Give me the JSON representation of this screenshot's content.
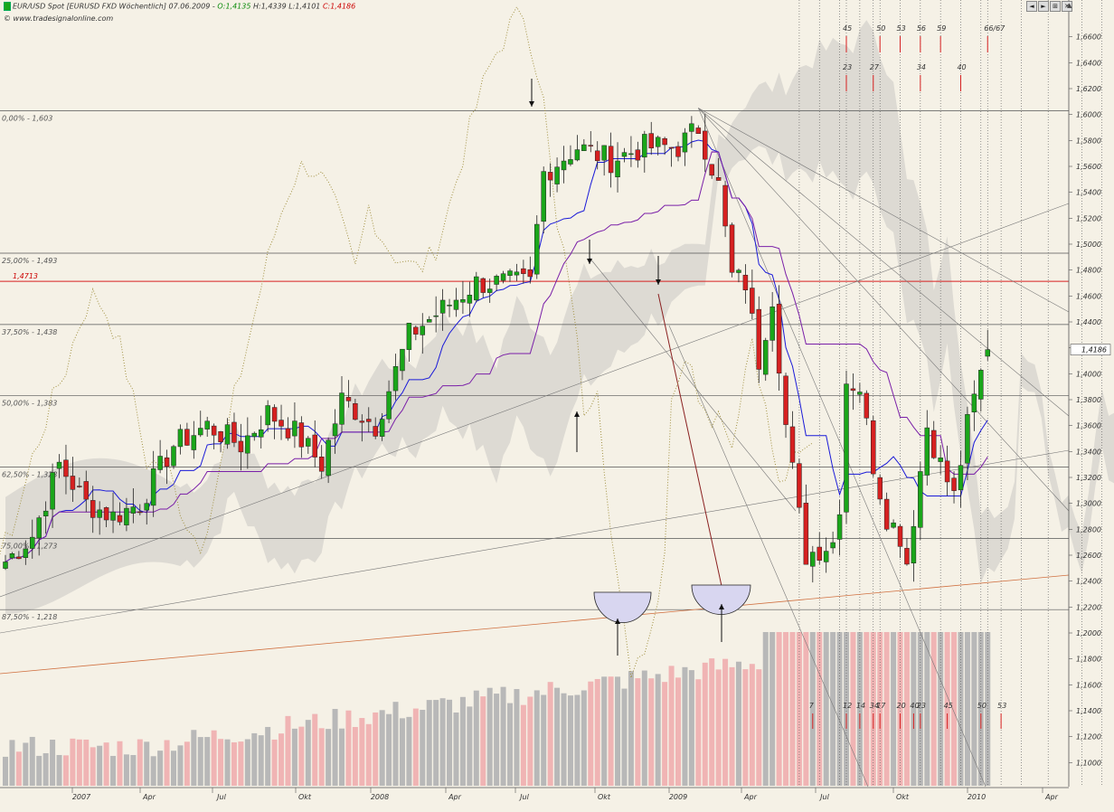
{
  "header": {
    "symbol": "EUR/USD Spot [EURUSD FXD  Wöchentlich] 07.06.2009",
    "o_label": "O:1,4135",
    "hl_label": "H:1,4339 L:1,4101",
    "c_label": "C:1,4186",
    "watermark": "© www.tradesignalonline.com"
  },
  "toolbar": {
    "btn_prev": "◄",
    "btn_next": "►",
    "btn_fit": "⊞",
    "btn_close": "✕",
    "btn_up": "▲"
  },
  "colors": {
    "background": "#f5f1e6",
    "up": "#1aa61a",
    "down": "#d62020",
    "kijun": "#7a1fa8",
    "tenkan": "#1a1ad8",
    "cloud": "#c8c6c2",
    "volume_up": "#b8b8b8",
    "volume_down": "#f0b4b4"
  },
  "chart_data": {
    "type": "candlestick",
    "timeframe": "weekly",
    "ylim": [
      1.08,
      1.68
    ],
    "y_ticks": [
      "1,1000",
      "1,1200",
      "1,1400",
      "1,1600",
      "1,1800",
      "1,2000",
      "1,2200",
      "1,2400",
      "1,2600",
      "1,2800",
      "1,3000",
      "1,3200",
      "1,3400",
      "1,3600",
      "1,3800",
      "1,4000",
      "1,4200",
      "1,4400",
      "1,4600",
      "1,4800",
      "1,5000",
      "1,5200",
      "1,5400",
      "1,5600",
      "1,5800",
      "1,6000",
      "1,6200",
      "1,6400",
      "1,6600"
    ],
    "x_ticks": [
      "2007",
      "Apr",
      "Jul",
      "Okt",
      "2008",
      "Apr",
      "Jul",
      "Okt",
      "2009",
      "Apr",
      "Jul",
      "Okt",
      "2010",
      "Apr"
    ],
    "last_price_label": "1,4186",
    "fib_levels": [
      {
        "label": "0,00% - 1,603",
        "value": 1.603
      },
      {
        "label": "25,00% - 1,493",
        "value": 1.493
      },
      {
        "label": "37,50% - 1,438",
        "value": 1.438
      },
      {
        "label": "50,00% - 1,383",
        "value": 1.383
      },
      {
        "label": "62,50% - 1,328",
        "value": 1.328
      },
      {
        "label": "75,00% - 1,273",
        "value": 1.273
      },
      {
        "label": "87,50% - 1,218",
        "value": 1.218
      }
    ],
    "red_level": {
      "label": "1,4713",
      "value": 1.4713
    },
    "fib_time_upper": [
      {
        "label": "45",
        "w": 125
      },
      {
        "label": "50",
        "w": 130
      },
      {
        "label": "53",
        "w": 133
      },
      {
        "label": "56",
        "w": 136
      },
      {
        "label": "59",
        "w": 139
      },
      {
        "label": "66/67",
        "w": 146
      }
    ],
    "fib_time_upper2": [
      {
        "label": "23",
        "w": 125
      },
      {
        "label": "27",
        "w": 129
      },
      {
        "label": "34",
        "w": 136
      },
      {
        "label": "40",
        "w": 142
      }
    ],
    "fib_time_lower": [
      {
        "label": "7",
        "w": 120
      },
      {
        "label": "12",
        "w": 125
      },
      {
        "label": "14",
        "w": 127
      },
      {
        "label": "17",
        "w": 130
      },
      {
        "label": "20",
        "w": 133
      },
      {
        "label": "23",
        "w": 136
      },
      {
        "label": "34",
        "w": 129
      },
      {
        "label": "40",
        "w": 135
      },
      {
        "label": "45",
        "w": 140
      },
      {
        "label": "50",
        "w": 145
      },
      {
        "label": "53",
        "w": 148
      }
    ],
    "ohlc_anchors": [
      {
        "w": 0,
        "c": 1.255
      },
      {
        "w": 4,
        "c": 1.275
      },
      {
        "w": 8,
        "c": 1.33
      },
      {
        "w": 12,
        "c": 1.3
      },
      {
        "w": 16,
        "c": 1.29
      },
      {
        "w": 20,
        "c": 1.3
      },
      {
        "w": 25,
        "c": 1.345
      },
      {
        "w": 30,
        "c": 1.36
      },
      {
        "w": 35,
        "c": 1.345
      },
      {
        "w": 39,
        "c": 1.37
      },
      {
        "w": 43,
        "c": 1.355
      },
      {
        "w": 47,
        "c": 1.33
      },
      {
        "w": 50,
        "c": 1.38
      },
      {
        "w": 55,
        "c": 1.36
      },
      {
        "w": 60,
        "c": 1.43
      },
      {
        "w": 65,
        "c": 1.45
      },
      {
        "w": 70,
        "c": 1.47
      },
      {
        "w": 75,
        "c": 1.47
      },
      {
        "w": 78,
        "c": 1.47
      },
      {
        "w": 80,
        "c": 1.555
      },
      {
        "w": 85,
        "c": 1.575
      },
      {
        "w": 90,
        "c": 1.565
      },
      {
        "w": 95,
        "c": 1.575
      },
      {
        "w": 100,
        "c": 1.575
      },
      {
        "w": 103,
        "c": 1.59
      },
      {
        "w": 106,
        "c": 1.545
      },
      {
        "w": 108,
        "c": 1.475
      },
      {
        "w": 110,
        "c": 1.47
      },
      {
        "w": 112,
        "c": 1.41
      },
      {
        "w": 114,
        "c": 1.46
      },
      {
        "w": 116,
        "c": 1.36
      },
      {
        "w": 118,
        "c": 1.29
      },
      {
        "w": 119,
        "c": 1.26
      },
      {
        "w": 121,
        "c": 1.265
      },
      {
        "w": 123,
        "c": 1.27
      },
      {
        "w": 124,
        "c": 1.3
      },
      {
        "w": 125,
        "c": 1.395
      },
      {
        "w": 127,
        "c": 1.39
      },
      {
        "w": 129,
        "c": 1.33
      },
      {
        "w": 131,
        "c": 1.29
      },
      {
        "w": 133,
        "c": 1.275
      },
      {
        "w": 134,
        "c": 1.255
      },
      {
        "w": 135,
        "c": 1.29
      },
      {
        "w": 137,
        "c": 1.36
      },
      {
        "w": 139,
        "c": 1.33
      },
      {
        "w": 141,
        "c": 1.305
      },
      {
        "w": 143,
        "c": 1.36
      },
      {
        "w": 145,
        "c": 1.4
      },
      {
        "w": 146,
        "c": 1.4186
      }
    ],
    "volume_note": "weekly volume histogram, scale 0-1 relative"
  }
}
